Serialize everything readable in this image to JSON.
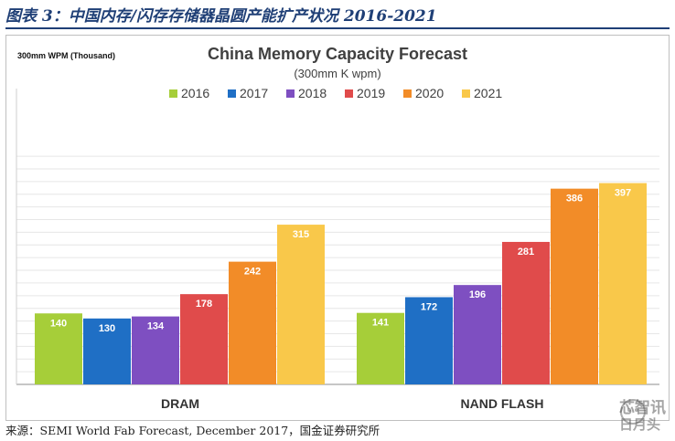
{
  "caption": "图表 3：中国内存/闪存存储器晶圆产能扩产状况 2016-2021",
  "source": "来源：SEMI World Fab Forecast, December 2017，国金证券研究所",
  "watermark": {
    "top": "芯智讯",
    "bottom": "日月头"
  },
  "chart_data": {
    "type": "bar",
    "title": "China Memory Capacity Forecast",
    "subtitle": "(300mm K wpm)",
    "ylabel": "300mm WPM (Thousand)",
    "xlabel": "",
    "categories": [
      "DRAM",
      "NAND FLASH"
    ],
    "series": [
      {
        "name": "2016",
        "color": "#a6ce39",
        "values": [
          140,
          141
        ]
      },
      {
        "name": "2017",
        "color": "#1f6fc5",
        "values": [
          130,
          172
        ]
      },
      {
        "name": "2018",
        "color": "#7e4fc1",
        "values": [
          134,
          196
        ]
      },
      {
        "name": "2019",
        "color": "#e04b4b",
        "values": [
          178,
          281
        ]
      },
      {
        "name": "2020",
        "color": "#f28c28",
        "values": [
          242,
          386
        ]
      },
      {
        "name": "2021",
        "color": "#f9c84a",
        "values": [
          315,
          397
        ]
      }
    ],
    "ylim": [
      0,
      450
    ],
    "grid": true,
    "legend": "top-center"
  }
}
